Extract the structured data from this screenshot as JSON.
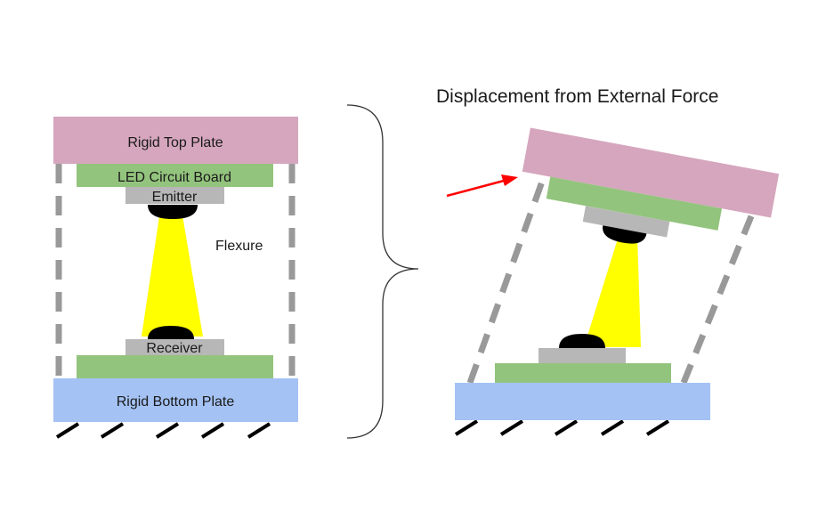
{
  "left_diagram": {
    "top_plate_label": "Rigid Top Plate",
    "led_board_label": "LED Circuit Board",
    "emitter_label": "Emitter",
    "flexure_label": "Flexure",
    "receiver_label": "Receiver",
    "bottom_plate_label": "Rigid Bottom Plate"
  },
  "right_diagram": {
    "title": "Displacement from External Force"
  },
  "colors": {
    "top_plate": "#d5a6bd",
    "circuit_board": "#93c47d",
    "component": "#b7b7b7",
    "bottom_plate": "#a4c2f4",
    "beam": "#ffff00",
    "flexure": "#999999",
    "force_arrow": "#ff0000"
  }
}
